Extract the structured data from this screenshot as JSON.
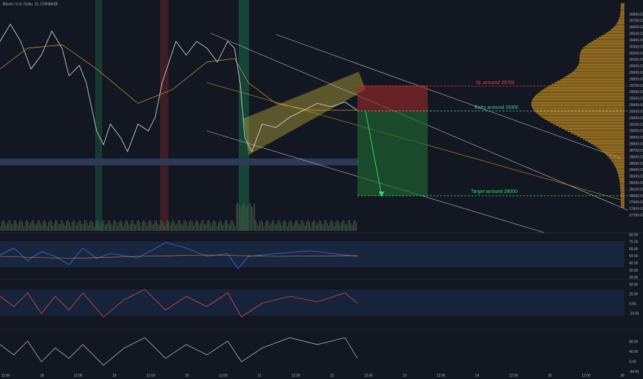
{
  "header": {
    "title": "Bitcoin / U.S. Dollar, 15, COINBASE"
  },
  "annotations": {
    "stop_loss": "SL arround 29700",
    "entry": "Entry arround 29350",
    "target": "Target arround 28000"
  },
  "price_axis": {
    "labels": [
      "30800.00",
      "30700.00",
      "30600.00",
      "30500.00",
      "30400.00",
      "30300.00",
      "30200.00",
      "30100.00",
      "30000.00",
      "29900.00",
      "29800.00",
      "29700.00",
      "29600.00",
      "29500.00",
      "29400.00",
      "29300.00",
      "29200.00",
      "29100.00",
      "29000.00",
      "28900.00",
      "28800.00",
      "28700.00",
      "28600.00",
      "28500.00",
      "28400.00",
      "28300.00",
      "28200.00",
      "28100.00",
      "28000.00",
      "27900.00",
      "27800.00",
      "27700.00"
    ]
  },
  "rsi_axis": {
    "labels": [
      "80.00",
      "70.00",
      "60.00",
      "50.00",
      "40.00",
      "30.00",
      "20.00"
    ]
  },
  "osc_axis": {
    "labels": [
      "40.00",
      "20.00",
      "0.00",
      "-20.00"
    ]
  },
  "stoch_axis": {
    "labels": [
      "80.00",
      "40.00",
      "0.00",
      "-40.00"
    ]
  },
  "time_axis": {
    "labels": [
      "12:00",
      "18",
      "12:00",
      "19",
      "12:00",
      "20",
      "12:00",
      "21",
      "12:00",
      "22",
      "12:00",
      "23",
      "12:00",
      "24",
      "12:00",
      "25",
      "12:00",
      "26"
    ]
  }
}
